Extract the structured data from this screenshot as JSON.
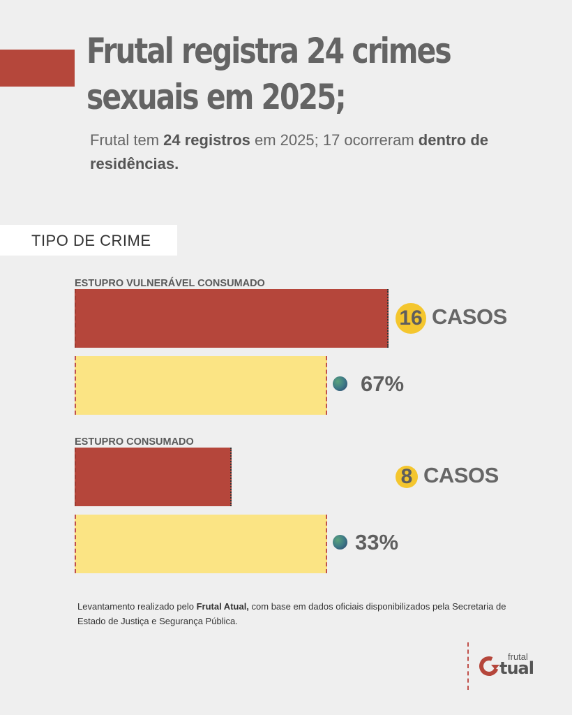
{
  "header": {
    "title": "Frutal registra 24 crimes sexuais em 2025;",
    "subtitle_part1": "Frutal tem ",
    "subtitle_bold1": "24 registros",
    "subtitle_part2": " em 2025; 17 ocorreram ",
    "subtitle_bold2": "dentro de residências."
  },
  "section_label": "TIPO DE CRIME",
  "chart_data": {
    "type": "bar",
    "title": "",
    "xlabel": "",
    "ylabel": "",
    "total": 24,
    "groups": [
      {
        "label": "ESTUPRO VULNERÁVEL CONSUMADO",
        "cases": 16,
        "cases_unit": "CASOS",
        "percent": 67,
        "percent_label": "67%"
      },
      {
        "label": "ESTUPRO CONSUMADO",
        "cases": 8,
        "cases_unit": "CASOS",
        "percent": 33,
        "percent_label": "33%"
      }
    ]
  },
  "footnote": {
    "part1": "Levantamento realizado pelo ",
    "bold": "Frutal Atual,",
    "part2": " com base em  dados oficiais disponibilizados pela Secretaria de Estado de Justiça e Segurança Pública."
  },
  "logo": {
    "small_text": "frutal",
    "big_text": "tual"
  },
  "colors": {
    "accent_red": "#b5463b",
    "bar_yellow": "#fbe484",
    "badge_yellow": "#f4c62e",
    "text_gray": "#646464"
  }
}
